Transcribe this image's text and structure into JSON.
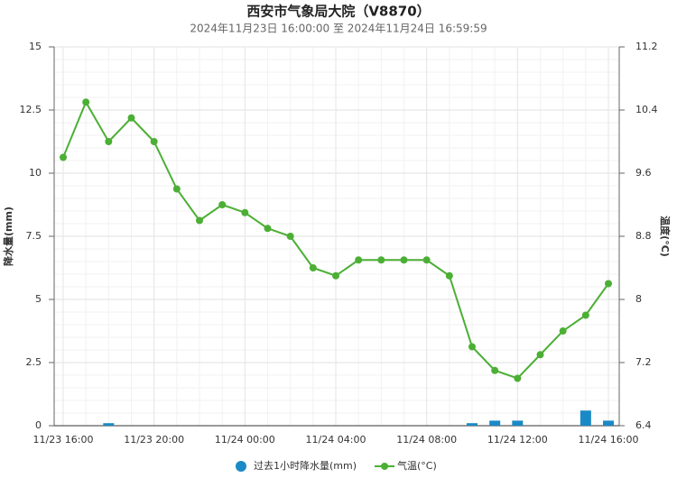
{
  "chart_data": {
    "type": "bar-line",
    "title": "西安市气象局大院（V8870）",
    "subtitle": "2024年11月23日 16:00:00 至 2024年11月24日 16:59:59",
    "ylabel": "降水量(mm)",
    "y2label": "温度(°C)",
    "categories": [
      "11/23 16:00",
      null,
      null,
      null,
      "11/23 20:00",
      null,
      null,
      null,
      "11/24 00:00",
      null,
      null,
      null,
      "11/24 04:00",
      null,
      null,
      null,
      "11/24 08:00",
      null,
      null,
      null,
      "11/24 12:00",
      null,
      null,
      null,
      "11/24 16:00"
    ],
    "series": [
      {
        "name": "过去1小时降水量(mm)",
        "type": "bar",
        "color": "#1a8ac6",
        "values": [
          0,
          0,
          0.1,
          0,
          0,
          0,
          0,
          0,
          0,
          0,
          0,
          0,
          0,
          0,
          0,
          0,
          0,
          0,
          0.1,
          0.2,
          0.2,
          0,
          0,
          0.6,
          0.2
        ]
      },
      {
        "name": "气温(°C)",
        "type": "line",
        "axis": "y2",
        "color": "#4caf35",
        "values": [
          9.8,
          10.5,
          10.0,
          10.3,
          10.0,
          9.4,
          9.0,
          9.2,
          9.1,
          8.9,
          8.8,
          8.4,
          8.3,
          8.5,
          8.5,
          8.5,
          8.5,
          8.3,
          7.4,
          7.1,
          7.0,
          7.3,
          7.6,
          7.8,
          8.2
        ]
      }
    ],
    "ylim": [
      0,
      15
    ],
    "yticks": [
      0,
      2.5,
      5,
      7.5,
      10,
      12.5,
      15
    ],
    "y2lim": [
      6.4,
      11.2
    ],
    "y2ticks": [
      6.4,
      7.2,
      8,
      8.8,
      9.6,
      10.4,
      11.2
    ],
    "grid": true,
    "legend": "bottom"
  }
}
